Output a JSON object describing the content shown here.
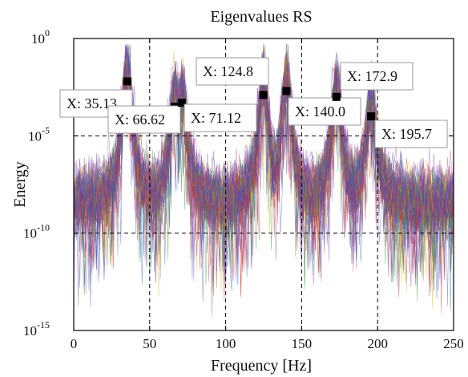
{
  "chart_data": {
    "type": "line",
    "title": "Eigenvalues RS",
    "xlabel": "Frequency [Hz]",
    "ylabel": "Energy",
    "xlim": [
      0,
      250
    ],
    "ylim_log10": [
      -15,
      0
    ],
    "y_scale": "log",
    "grid": true,
    "x_ticks": [
      0,
      50,
      100,
      150,
      200,
      250
    ],
    "y_ticks": [
      {
        "base": "10",
        "exp": "0",
        "value_log10": 0
      },
      {
        "base": "10",
        "exp": "-5",
        "value_log10": -5
      },
      {
        "base": "10",
        "exp": "-10",
        "value_log10": -10
      },
      {
        "base": "10",
        "exp": "-15",
        "value_log10": -15
      }
    ],
    "series_colors": [
      "#d62728",
      "#7b3f9e",
      "#3f51b5",
      "#2ca02c",
      "#e6b800",
      "#5a5ab8",
      "#9a4fb5",
      "#1f5fbf",
      "#c0392b",
      "#8e44ad"
    ],
    "peaks": [
      {
        "x": 35.13,
        "log10_y": -2.2,
        "label": "X: 35.13"
      },
      {
        "x": 66.62,
        "log10_y": -3.5,
        "label": "X: 66.62"
      },
      {
        "x": 71.12,
        "log10_y": -3.3,
        "label": "X: 71.12"
      },
      {
        "x": 124.8,
        "log10_y": -2.9,
        "label": "X: 124.8"
      },
      {
        "x": 140.0,
        "log10_y": -2.7,
        "label": "X: 140.0"
      },
      {
        "x": 172.9,
        "log10_y": -3.0,
        "label": "X: 172.9"
      },
      {
        "x": 195.7,
        "log10_y": -4.0,
        "label": "X: 195.7"
      }
    ]
  }
}
